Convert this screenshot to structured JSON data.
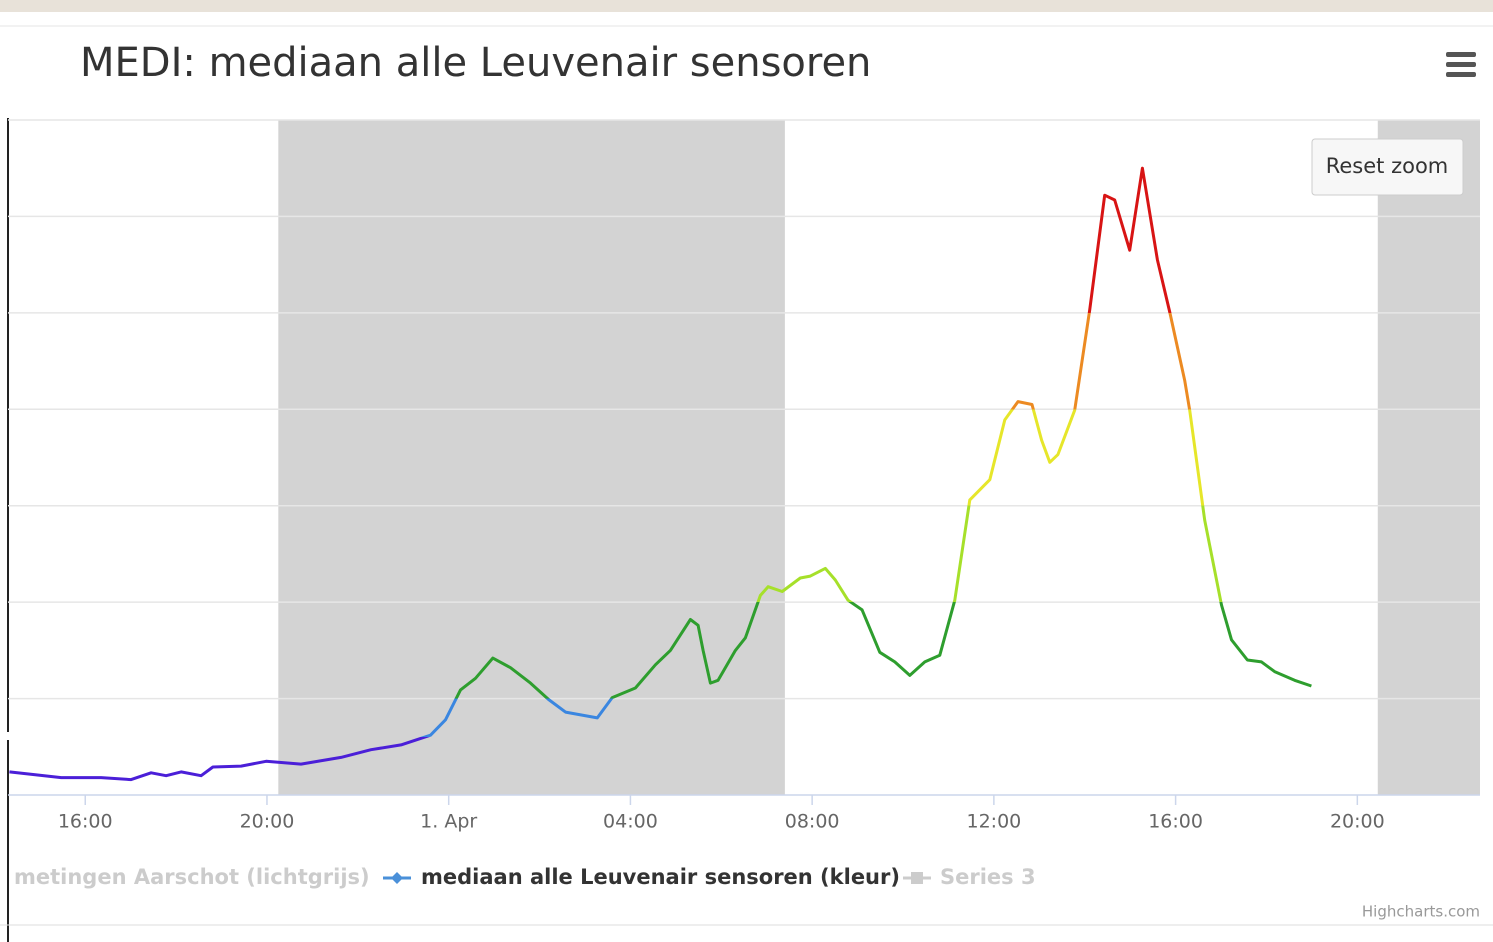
{
  "chart_data": {
    "type": "line",
    "title": "MEDI: mediaan alle Leuvenair sensoren",
    "reset_button": "Reset zoom",
    "credits": "Highcharts.com",
    "xlim": [
      14.3,
      46.7
    ],
    "xticks": [
      {
        "value": 16,
        "label": "16:00"
      },
      {
        "value": 20,
        "label": "20:00"
      },
      {
        "value": 24,
        "label": "1. Apr"
      },
      {
        "value": 28,
        "label": "04:00"
      },
      {
        "value": 32,
        "label": "08:00"
      },
      {
        "value": 36,
        "label": "12:00"
      },
      {
        "value": 40,
        "label": "16:00"
      },
      {
        "value": 44,
        "label": "20:00"
      }
    ],
    "ylim": [
      0,
      7
    ],
    "yticks": [
      0,
      1,
      2,
      3,
      4,
      5,
      6,
      7
    ],
    "grid": true,
    "plot_bands": [
      {
        "from": 20.25,
        "to": 31.4,
        "color": "#d3d3d3"
      },
      {
        "from": 44.45,
        "to": 46.7,
        "color": "#d3d3d3"
      }
    ],
    "x": [
      14.33,
      15.47,
      16.35,
      17.01,
      17.45,
      17.78,
      18.11,
      18.55,
      18.81,
      19.43,
      19.98,
      20.75,
      21.63,
      22.29,
      22.95,
      23.6,
      23.93,
      24.26,
      24.59,
      24.97,
      25.36,
      25.8,
      26.2,
      26.57,
      27.27,
      27.6,
      28.11,
      28.55,
      28.88,
      29.32,
      29.49,
      29.6,
      29.76,
      29.93,
      30.31,
      30.53,
      30.86,
      31.03,
      31.34,
      31.74,
      31.96,
      32.29,
      32.51,
      32.79,
      33.1,
      33.49,
      33.82,
      34.15,
      34.48,
      34.81,
      35.14,
      35.47,
      35.91,
      36.24,
      36.53,
      36.84,
      37.05,
      37.23,
      37.41,
      37.78,
      38.11,
      38.44,
      38.66,
      38.99,
      39.27,
      39.6,
      39.87,
      40.2,
      40.31,
      40.64,
      41.01,
      41.23,
      41.58,
      41.89,
      42.18,
      42.62,
      42.99
    ],
    "series": [
      {
        "name": "mediaan alle Leuvenair sensoren (kleur)",
        "color": "#4a90d9",
        "values": [
          0.24,
          0.18,
          0.18,
          0.16,
          0.23,
          0.2,
          0.24,
          0.2,
          0.29,
          0.3,
          0.35,
          0.32,
          0.39,
          0.47,
          0.52,
          0.62,
          0.78,
          1.09,
          1.21,
          1.42,
          1.32,
          1.16,
          0.99,
          0.86,
          0.8,
          1.01,
          1.11,
          1.35,
          1.5,
          1.82,
          1.76,
          1.5,
          1.16,
          1.19,
          1.5,
          1.63,
          2.07,
          2.16,
          2.11,
          2.25,
          2.27,
          2.35,
          2.23,
          2.02,
          1.92,
          1.48,
          1.38,
          1.24,
          1.38,
          1.45,
          2.02,
          3.06,
          3.27,
          3.89,
          4.08,
          4.05,
          3.68,
          3.45,
          3.53,
          3.99,
          5.03,
          6.22,
          6.17,
          5.65,
          6.5,
          5.55,
          5.01,
          4.3,
          3.99,
          2.85,
          1.97,
          1.61,
          1.4,
          1.38,
          1.28,
          1.19,
          1.13
        ],
        "zones": [
          {
            "value": 0.6,
            "color": "#4b1fd8"
          },
          {
            "value": 1.0,
            "color": "#3a86e0"
          },
          {
            "value": 2.0,
            "color": "#2e9e2e"
          },
          {
            "value": 3.0,
            "color": "#a6e02a"
          },
          {
            "value": 4.0,
            "color": "#e6e62a"
          },
          {
            "value": 5.0,
            "color": "#ec8a22"
          },
          {
            "color": "#d81414"
          }
        ]
      }
    ],
    "legend_hidden": [
      {
        "name": "metingen Aarschot (lichtgrijs)",
        "color": "#cccccc"
      },
      {
        "name": "Series 3",
        "color": "#cccccc"
      }
    ]
  }
}
